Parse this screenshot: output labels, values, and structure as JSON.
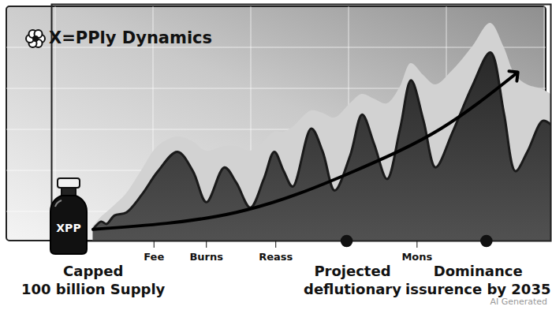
{
  "chart_data": {
    "type": "line",
    "title": "X=PPly Dynamics",
    "x": [
      8.3,
      9.9,
      11.0,
      12.6,
      15.0,
      18.1,
      21.3,
      25.2,
      28.3,
      31.0,
      34.6,
      37.0,
      39.8,
      42.5,
      44.6,
      46.5,
      48.3,
      52.0,
      54.3,
      56.7,
      59.8,
      62.2,
      64.6,
      67.2,
      69.8,
      72.0,
      74.5,
      76.9,
      80.3,
      84.3,
      87.9,
      90.6,
      92.9,
      95.3,
      98.4,
      100
    ],
    "series": [
      {
        "type": "area",
        "color": "#d2d2d2",
        "values": [
          6,
          10,
          12,
          15,
          20,
          30,
          40,
          44,
          42,
          38,
          40,
          40,
          38,
          42,
          46,
          46,
          48,
          55,
          54,
          52,
          58,
          62,
          60,
          58,
          65,
          75,
          70,
          66,
          72,
          82,
          92,
          82,
          70,
          66,
          64,
          62
        ]
      },
      {
        "type": "line",
        "color": "#1a1a1a",
        "values": [
          4.9,
          8.2,
          7.2,
          10.8,
          12.1,
          19.7,
          29.5,
          37.7,
          29.5,
          16.4,
          31.1,
          24.6,
          14.1,
          26.2,
          37.7,
          29.5,
          23.0,
          47.5,
          37.7,
          21.3,
          36.1,
          53.4,
          41.0,
          26.2,
          47.5,
          67.9,
          50.8,
          31.1,
          45.9,
          65.6,
          79.7,
          54.1,
          29.5,
          37.7,
          50.8,
          49.2
        ]
      },
      {
        "type": "line",
        "color": "#000000",
        "marker": "arrow",
        "x": [
          8.3,
          37.0,
          60.6,
          78.0,
          92.9
        ],
        "values": [
          4.9,
          12.1,
          29.5,
          47.5,
          70.5
        ]
      }
    ],
    "xlim": [
      0,
      100
    ],
    "ylim": [
      0,
      100
    ],
    "xticks": [
      {
        "value": 20.5,
        "label": "Fee"
      },
      {
        "value": 31.0,
        "label": "Burns"
      },
      {
        "value": 44.9,
        "label": "Reass"
      },
      {
        "value": 73.2,
        "label": "Mons"
      }
    ],
    "milestones": [
      59.1,
      87.1
    ],
    "annotations": [
      "Capped\n100 billion Supply",
      "Projected\ndeflutionary",
      "Dominance\nissurence by 2035"
    ],
    "bottle_label": "XPP",
    "watermark": "AI Generated",
    "tick_labels": "x",
    "grid": true
  }
}
